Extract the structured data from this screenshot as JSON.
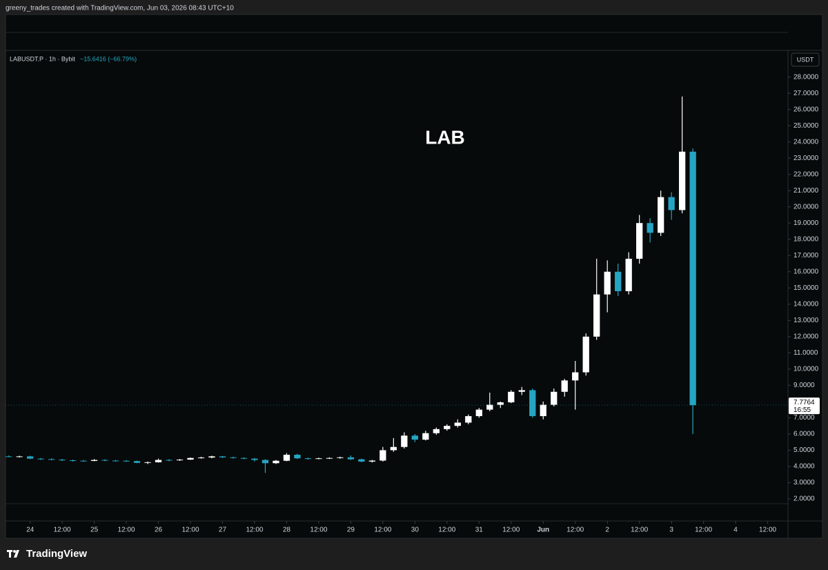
{
  "header": "greeny_trades created with TradingView.com, Jun 03, 2026 08:43 UTC+10",
  "footer": {
    "brand": "TradingView"
  },
  "chart_data": {
    "type": "candlestick",
    "symbol": "LABUSDT.P · 1h · Bybit",
    "change": "−15.6416 (−66.79%)",
    "currency": "USDT",
    "annotation": "LAB",
    "last_price": {
      "value": 7.7764,
      "label": "7.7764"
    },
    "countdown": "16:55",
    "up_color": "#ffffff",
    "down_color": "#26a5c3",
    "x": [
      2,
      3,
      4,
      5,
      6,
      7,
      8,
      9,
      10,
      11,
      12,
      13,
      14,
      15,
      16,
      17,
      18,
      19,
      20,
      21,
      22,
      23,
      24,
      25,
      26,
      27,
      28,
      29,
      30,
      31,
      32,
      33,
      34,
      35,
      36,
      37,
      38,
      39,
      40,
      41,
      42,
      43,
      44,
      45,
      46,
      47,
      48,
      49,
      50,
      51,
      52,
      53,
      54,
      55,
      56,
      57,
      58,
      59,
      60,
      61,
      62,
      63,
      64,
      65,
      66
    ],
    "open": [
      4.62,
      4.6,
      4.62,
      4.48,
      4.45,
      4.42,
      4.38,
      4.35,
      4.34,
      4.4,
      4.36,
      4.35,
      4.33,
      4.22,
      4.26,
      4.4,
      4.38,
      4.42,
      4.52,
      4.55,
      4.62,
      4.56,
      4.52,
      4.48,
      4.4,
      4.2,
      4.35,
      4.72,
      4.5,
      4.48,
      4.5,
      4.52,
      4.56,
      4.44,
      4.3,
      4.36,
      5.0,
      5.2,
      5.9,
      5.65,
      6.05,
      6.3,
      6.5,
      6.7,
      7.1,
      7.5,
      7.8,
      7.95,
      8.6,
      8.7,
      7.1,
      7.8,
      8.6,
      9.3,
      9.8,
      12.0,
      14.6,
      16.0,
      14.8,
      16.8,
      19.0,
      18.4,
      20.6,
      19.8,
      23.4
    ],
    "high": [
      4.68,
      4.66,
      4.66,
      4.52,
      4.5,
      4.46,
      4.42,
      4.4,
      4.45,
      4.44,
      4.4,
      4.39,
      4.36,
      4.3,
      4.48,
      4.45,
      4.46,
      4.55,
      4.6,
      4.66,
      4.65,
      4.6,
      4.56,
      4.52,
      4.44,
      4.4,
      4.82,
      4.78,
      4.55,
      4.54,
      4.56,
      4.6,
      4.68,
      4.48,
      4.4,
      5.2,
      5.75,
      6.1,
      6.0,
      6.2,
      6.4,
      6.6,
      6.9,
      7.2,
      7.6,
      8.55,
      8.0,
      8.7,
      8.9,
      8.8,
      8.0,
      8.8,
      9.4,
      10.5,
      12.2,
      16.8,
      16.7,
      16.5,
      17.2,
      19.5,
      19.3,
      21.0,
      20.9,
      26.8,
      23.6
    ],
    "low": [
      4.58,
      4.55,
      4.45,
      4.4,
      4.38,
      4.34,
      4.3,
      4.3,
      4.32,
      4.32,
      4.3,
      4.28,
      4.2,
      4.15,
      4.24,
      4.32,
      4.34,
      4.4,
      4.48,
      4.5,
      4.52,
      4.48,
      4.44,
      4.3,
      3.6,
      4.15,
      4.32,
      4.46,
      4.42,
      4.44,
      4.46,
      4.48,
      4.4,
      4.26,
      4.24,
      4.3,
      4.9,
      5.1,
      5.5,
      5.6,
      5.95,
      6.2,
      6.4,
      6.6,
      7.0,
      7.4,
      7.6,
      7.9,
      8.4,
      7.0,
      6.9,
      7.7,
      8.3,
      7.5,
      9.6,
      11.8,
      13.5,
      14.5,
      14.6,
      16.5,
      17.8,
      18.2,
      19.2,
      19.6,
      6.0
    ],
    "close": [
      4.6,
      4.62,
      4.48,
      4.45,
      4.42,
      4.38,
      4.35,
      4.34,
      4.4,
      4.36,
      4.35,
      4.33,
      4.22,
      4.26,
      4.4,
      4.38,
      4.42,
      4.52,
      4.55,
      4.62,
      4.56,
      4.52,
      4.48,
      4.4,
      4.2,
      4.35,
      4.72,
      4.5,
      4.48,
      4.5,
      4.52,
      4.56,
      4.44,
      4.3,
      4.36,
      5.0,
      5.2,
      5.9,
      5.65,
      6.05,
      6.3,
      6.5,
      6.7,
      7.1,
      7.5,
      7.8,
      7.95,
      8.6,
      8.7,
      7.1,
      7.8,
      8.6,
      9.3,
      9.8,
      12.0,
      14.6,
      16.0,
      14.8,
      16.8,
      19.0,
      18.4,
      20.6,
      19.8,
      23.4,
      7.7764
    ],
    "xlim": [
      1.7,
      74.9
    ],
    "xticks": [
      {
        "value": 4,
        "label": "24"
      },
      {
        "value": 7,
        "label": "12:00"
      },
      {
        "value": 10,
        "label": "25"
      },
      {
        "value": 13,
        "label": "12:00"
      },
      {
        "value": 16,
        "label": "26"
      },
      {
        "value": 19,
        "label": "12:00"
      },
      {
        "value": 22,
        "label": "27"
      },
      {
        "value": 25,
        "label": "12:00"
      },
      {
        "value": 28,
        "label": "28"
      },
      {
        "value": 31,
        "label": "12:00"
      },
      {
        "value": 34,
        "label": "29"
      },
      {
        "value": 37,
        "label": "12:00"
      },
      {
        "value": 40,
        "label": "30"
      },
      {
        "value": 43,
        "label": "12:00"
      },
      {
        "value": 46,
        "label": "31"
      },
      {
        "value": 49,
        "label": "12:00"
      },
      {
        "value": 52,
        "label": "Jun"
      },
      {
        "value": 55,
        "label": "12:00"
      },
      {
        "value": 58,
        "label": "2"
      },
      {
        "value": 61,
        "label": "12:00"
      },
      {
        "value": 64,
        "label": "3"
      },
      {
        "value": 67,
        "label": "12:00"
      },
      {
        "value": 70,
        "label": "4"
      },
      {
        "value": 73,
        "label": "12:00"
      }
    ],
    "ylim": [
      1.7,
      29.6
    ],
    "yticks": [
      {
        "value": 2,
        "label": "2.0000"
      },
      {
        "value": 3,
        "label": "3.0000"
      },
      {
        "value": 4,
        "label": "4.0000"
      },
      {
        "value": 5,
        "label": "5.0000"
      },
      {
        "value": 6,
        "label": "6.0000"
      },
      {
        "value": 7,
        "label": "7.0000"
      },
      {
        "value": 8,
        "label": "8.0000"
      },
      {
        "value": 9,
        "label": "9.0000"
      },
      {
        "value": 10,
        "label": "10.0000"
      },
      {
        "value": 11,
        "label": "11.0000"
      },
      {
        "value": 12,
        "label": "12.0000"
      },
      {
        "value": 13,
        "label": "13.0000"
      },
      {
        "value": 14,
        "label": "14.0000"
      },
      {
        "value": 15,
        "label": "15.0000"
      },
      {
        "value": 16,
        "label": "16.0000"
      },
      {
        "value": 17,
        "label": "17.0000"
      },
      {
        "value": 18,
        "label": "18.0000"
      },
      {
        "value": 19,
        "label": "19.0000"
      },
      {
        "value": 20,
        "label": "20.0000"
      },
      {
        "value": 21,
        "label": "21.0000"
      },
      {
        "value": 22,
        "label": "22.0000"
      },
      {
        "value": 23,
        "label": "23.0000"
      },
      {
        "value": 24,
        "label": "24.0000"
      },
      {
        "value": 25,
        "label": "25.0000"
      },
      {
        "value": 26,
        "label": "26.0000"
      },
      {
        "value": 27,
        "label": "27.0000"
      },
      {
        "value": 28,
        "label": "28.0000"
      }
    ]
  }
}
